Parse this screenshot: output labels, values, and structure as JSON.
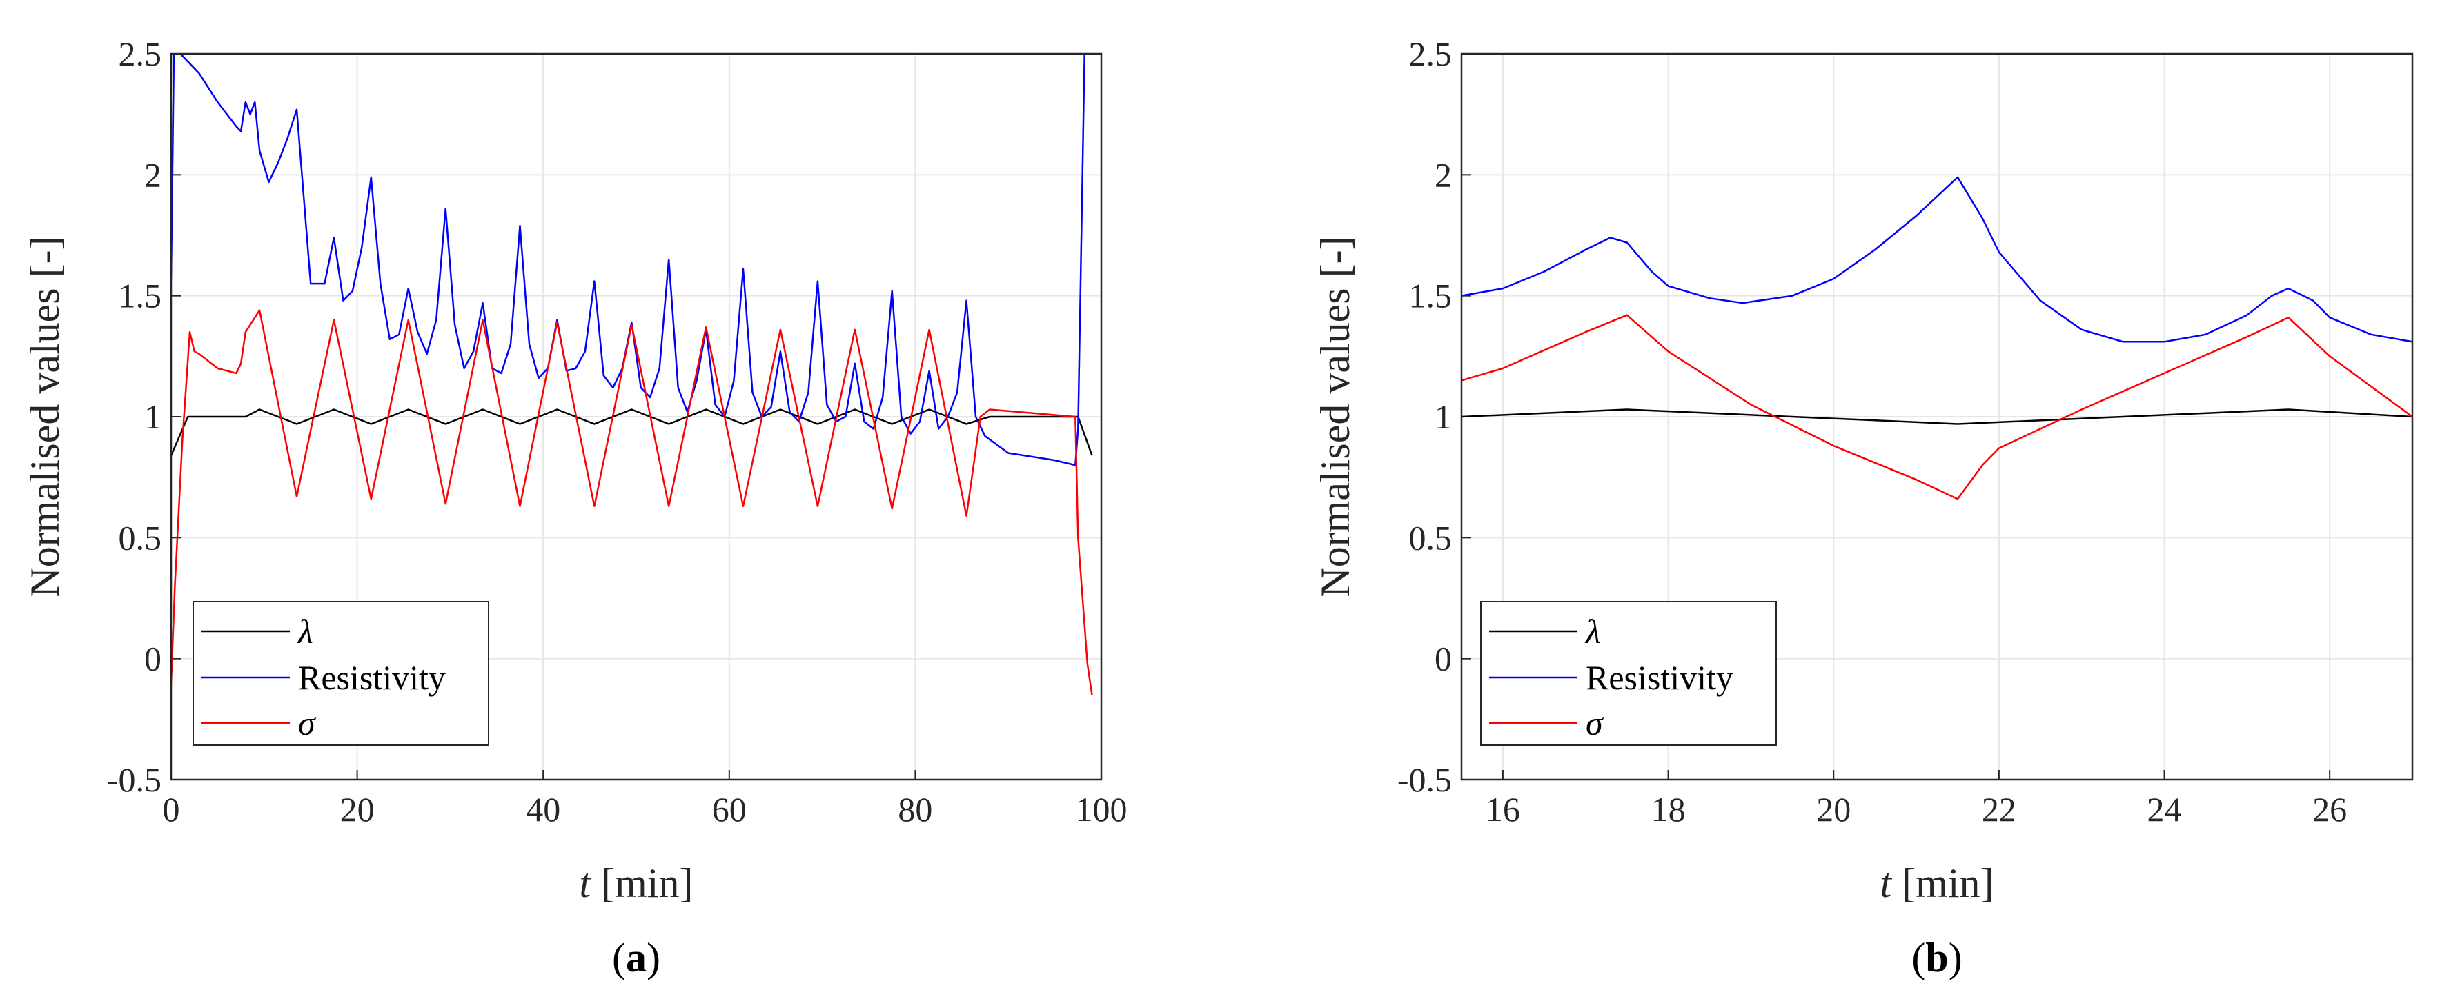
{
  "chart_data": [
    {
      "id": "a",
      "type": "line",
      "caption_letter": "a",
      "xlabel_var": "t",
      "xlabel_unit": " [min]",
      "ylabel": "Normalised values [-]",
      "xlim": [
        0,
        100
      ],
      "ylim": [
        -0.5,
        2.5
      ],
      "xticks": [
        "0",
        "20",
        "40",
        "60",
        "80",
        "100"
      ],
      "yticks": [
        "-0.5",
        "0",
        "0.5",
        "1",
        "1.5",
        "2",
        "2.5"
      ],
      "grid": true,
      "legend": {
        "placement": "bottom-left",
        "entries": [
          {
            "label": "λ",
            "color": "#000000",
            "italic": true
          },
          {
            "label": "Resistivity",
            "color": "#0000ff",
            "italic": false
          },
          {
            "label": "σ",
            "color": "#ff0000",
            "italic": true
          }
        ]
      },
      "series": [
        {
          "name": "λ",
          "color": "#000000",
          "x": [
            0,
            1.8,
            8,
            9.5,
            13.5,
            17.5,
            21.5,
            25.5,
            29.5,
            33.5,
            37.5,
            41.5,
            45.5,
            49.5,
            53.5,
            57.5,
            61.5,
            65.5,
            69.5,
            73.5,
            77.5,
            81.5,
            85.5,
            88,
            97.5,
            99
          ],
          "y": [
            0.84,
            1.0,
            1.0,
            1.03,
            0.97,
            1.03,
            0.97,
            1.03,
            0.97,
            1.03,
            0.97,
            1.03,
            0.97,
            1.03,
            0.97,
            1.03,
            0.97,
            1.03,
            0.97,
            1.03,
            0.97,
            1.03,
            0.97,
            1.0,
            1.0,
            0.84
          ]
        },
        {
          "name": "Resistivity",
          "color": "#0000ff",
          "x": [
            0,
            0.3,
            1,
            3,
            5,
            7,
            7.5,
            8,
            8.5,
            9,
            9.5,
            10.5,
            11.5,
            12.5,
            13.5,
            15,
            16.5,
            17.5,
            18.5,
            19.5,
            20.5,
            21.5,
            22.5,
            23.5,
            24.5,
            25.5,
            26.5,
            27.5,
            28.5,
            29.5,
            30.5,
            31.5,
            32.5,
            33.5,
            34.5,
            35.5,
            36.5,
            37.5,
            38.5,
            39.5,
            40.5,
            41.5,
            42.5,
            43.5,
            44.5,
            45.5,
            46.5,
            47.5,
            48.5,
            49.5,
            50.5,
            51.5,
            52.5,
            53.5,
            54.5,
            55.5,
            56.5,
            57.5,
            58.5,
            59.5,
            60.5,
            61.5,
            62.5,
            63.5,
            64.5,
            65.5,
            66.5,
            67.5,
            68.5,
            69.5,
            70.5,
            71.5,
            72.5,
            73.5,
            74.5,
            75.5,
            76.5,
            77.5,
            78.5,
            79.5,
            80.5,
            81.5,
            82.5,
            83.5,
            84.5,
            85.5,
            86.5,
            87.5,
            90,
            95,
            97.2,
            97.5,
            98.2
          ],
          "y": [
            1.57,
            2.5,
            2.5,
            2.42,
            2.3,
            2.2,
            2.18,
            2.3,
            2.25,
            2.3,
            2.1,
            1.97,
            2.05,
            2.15,
            2.27,
            1.55,
            1.55,
            1.74,
            1.48,
            1.52,
            1.7,
            1.99,
            1.55,
            1.32,
            1.34,
            1.53,
            1.35,
            1.26,
            1.4,
            1.86,
            1.38,
            1.2,
            1.27,
            1.47,
            1.2,
            1.18,
            1.3,
            1.79,
            1.3,
            1.16,
            1.2,
            1.4,
            1.19,
            1.2,
            1.27,
            1.56,
            1.17,
            1.12,
            1.2,
            1.39,
            1.12,
            1.08,
            1.2,
            1.65,
            1.12,
            1.02,
            1.15,
            1.36,
            1.05,
            1.0,
            1.15,
            1.61,
            1.1,
            1.0,
            1.04,
            1.27,
            1.02,
            0.98,
            1.1,
            1.56,
            1.05,
            0.98,
            1.0,
            1.22,
            0.98,
            0.95,
            1.08,
            1.52,
            1.0,
            0.93,
            0.98,
            1.19,
            0.95,
            1.0,
            1.1,
            1.48,
            1.0,
            0.92,
            0.85,
            0.82,
            0.8,
            0.95,
            2.5
          ]
        },
        {
          "name": "σ",
          "color": "#ff0000",
          "x": [
            0,
            0.4,
            1.2,
            2,
            2.5,
            3,
            5,
            7,
            7.5,
            8,
            9.5,
            13.5,
            17.5,
            21.5,
            25.5,
            29.5,
            33.5,
            37.5,
            41.5,
            45.5,
            49.5,
            53.5,
            57.5,
            61.5,
            65.5,
            69.5,
            73.5,
            77.5,
            81.5,
            85.5,
            87,
            88,
            97.2,
            97.5,
            98.5,
            99
          ],
          "y": [
            -0.1,
            0.3,
            0.9,
            1.35,
            1.27,
            1.26,
            1.2,
            1.18,
            1.22,
            1.35,
            1.44,
            0.67,
            1.4,
            0.66,
            1.4,
            0.64,
            1.4,
            0.63,
            1.39,
            0.63,
            1.38,
            0.63,
            1.37,
            0.63,
            1.36,
            0.63,
            1.36,
            0.62,
            1.36,
            0.59,
            1.0,
            1.03,
            1.0,
            0.5,
            -0.02,
            -0.15
          ]
        }
      ]
    },
    {
      "id": "b",
      "type": "line",
      "caption_letter": "b",
      "xlabel_var": "t",
      "xlabel_unit": " [min]",
      "ylabel": "Normalised values [-]",
      "xlim": [
        15.5,
        27
      ],
      "ylim": [
        -0.5,
        2.5
      ],
      "xticks": [
        "16",
        "18",
        "20",
        "22",
        "24",
        "26"
      ],
      "yticks": [
        "-0.5",
        "0",
        "0.5",
        "1",
        "1.5",
        "2",
        "2.5"
      ],
      "grid": true,
      "legend": {
        "placement": "bottom-left",
        "entries": [
          {
            "label": "λ",
            "color": "#000000",
            "italic": true
          },
          {
            "label": "Resistivity",
            "color": "#0000ff",
            "italic": false
          },
          {
            "label": "σ",
            "color": "#ff0000",
            "italic": true
          }
        ]
      },
      "series": [
        {
          "name": "λ",
          "color": "#000000",
          "x": [
            15.5,
            17.5,
            21.5,
            25.5,
            27
          ],
          "y": [
            1.0,
            1.03,
            0.97,
            1.03,
            1.0
          ]
        },
        {
          "name": "Resistivity",
          "color": "#0000ff",
          "x": [
            15.5,
            16,
            16.5,
            17,
            17.3,
            17.5,
            17.8,
            18,
            18.5,
            18.9,
            19.5,
            20,
            20.5,
            21,
            21.5,
            21.8,
            22,
            22.5,
            23,
            23.5,
            24,
            24.5,
            25,
            25.3,
            25.5,
            25.8,
            26,
            26.5,
            27
          ],
          "y": [
            1.5,
            1.53,
            1.6,
            1.69,
            1.74,
            1.72,
            1.6,
            1.54,
            1.49,
            1.47,
            1.5,
            1.57,
            1.69,
            1.83,
            1.99,
            1.82,
            1.68,
            1.48,
            1.36,
            1.31,
            1.31,
            1.34,
            1.42,
            1.5,
            1.53,
            1.48,
            1.41,
            1.34,
            1.31
          ]
        },
        {
          "name": "σ",
          "color": "#ff0000",
          "x": [
            15.5,
            16,
            17,
            17.5,
            18,
            19,
            20,
            21,
            21.5,
            21.8,
            22,
            23,
            24,
            25,
            25.5,
            26,
            27
          ],
          "y": [
            1.15,
            1.2,
            1.35,
            1.42,
            1.27,
            1.05,
            0.88,
            0.74,
            0.66,
            0.8,
            0.87,
            1.03,
            1.18,
            1.33,
            1.41,
            1.25,
            1.0
          ]
        }
      ]
    }
  ]
}
